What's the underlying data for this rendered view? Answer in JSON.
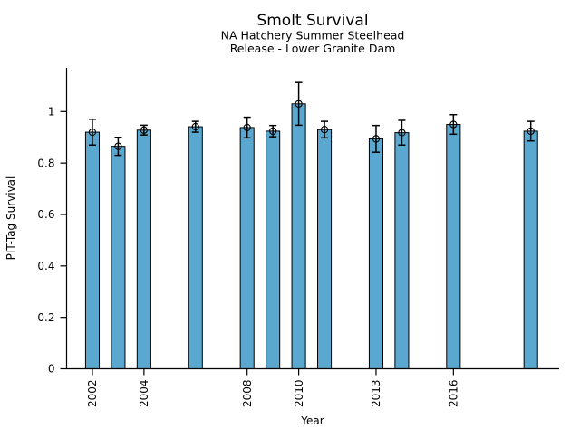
{
  "figure": {
    "title": "Smolt Survival"
  },
  "chart_data": {
    "type": "bar",
    "title": "Smolt Survival",
    "subtitle": [
      "NA Hatchery Summer Steelhead",
      "Release - Lower Granite Dam"
    ],
    "xlabel": "Year",
    "ylabel": "PIT-Tag Survival",
    "x": [
      2002,
      2003,
      2004,
      2006,
      2008,
      2009,
      2010,
      2011,
      2013,
      2014,
      2016,
      2019
    ],
    "values": [
      0.92,
      0.865,
      0.928,
      0.941,
      0.938,
      0.924,
      1.03,
      0.93,
      0.894,
      0.918,
      0.95,
      0.924
    ],
    "errors": [
      0.05,
      0.035,
      0.019,
      0.021,
      0.04,
      0.022,
      0.083,
      0.032,
      0.052,
      0.048,
      0.038,
      0.038
    ],
    "xticks": [
      2002,
      2004,
      2008,
      2010,
      2013,
      2016
    ],
    "xtick_labels": [
      "2002",
      "2004",
      "2008",
      "2010",
      "2013",
      "2016"
    ],
    "yticks": [
      0,
      0.2,
      0.4,
      0.6,
      0.8,
      1
    ],
    "ytick_labels": [
      "0",
      "0.2",
      "0.4",
      "0.6",
      "0.8",
      "1"
    ],
    "xlim": [
      2001.0,
      2020.1
    ],
    "ylim": [
      0,
      1.17
    ],
    "bar_width_years": 0.53,
    "marker": "open-circle",
    "grid": false,
    "legend": null,
    "colors": {
      "bar_fill": "#5AA8D0",
      "bar_edge": "#000000",
      "error_line": "#000000",
      "axis": "#000000",
      "background": "#ffffff"
    }
  }
}
